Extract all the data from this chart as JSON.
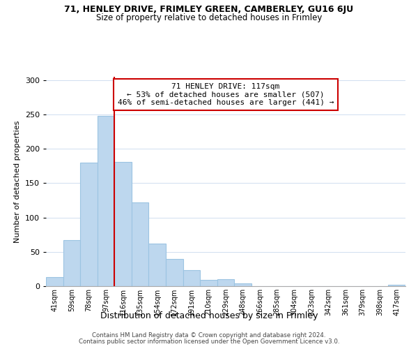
{
  "title1": "71, HENLEY DRIVE, FRIMLEY GREEN, CAMBERLEY, GU16 6JU",
  "title2": "Size of property relative to detached houses in Frimley",
  "xlabel": "Distribution of detached houses by size in Frimley",
  "ylabel": "Number of detached properties",
  "bar_labels": [
    "41sqm",
    "59sqm",
    "78sqm",
    "97sqm",
    "116sqm",
    "135sqm",
    "154sqm",
    "172sqm",
    "191sqm",
    "210sqm",
    "229sqm",
    "248sqm",
    "266sqm",
    "285sqm",
    "304sqm",
    "323sqm",
    "342sqm",
    "361sqm",
    "379sqm",
    "398sqm",
    "417sqm"
  ],
  "bar_values": [
    13,
    67,
    180,
    248,
    181,
    122,
    62,
    40,
    23,
    9,
    10,
    4,
    0,
    0,
    0,
    0,
    0,
    0,
    0,
    0,
    2
  ],
  "bar_color": "#bdd7ee",
  "bar_edge_color": "#9bc4e2",
  "vline_color": "#cc0000",
  "annotation_line1": "71 HENLEY DRIVE: 117sqm",
  "annotation_line2": "← 53% of detached houses are smaller (507)",
  "annotation_line3": "46% of semi-detached houses are larger (441) →",
  "annotation_box_color": "#ffffff",
  "annotation_box_edge": "#cc0000",
  "ylim": [
    0,
    305
  ],
  "yticks": [
    0,
    50,
    100,
    150,
    200,
    250,
    300
  ],
  "footer1": "Contains HM Land Registry data © Crown copyright and database right 2024.",
  "footer2": "Contains public sector information licensed under the Open Government Licence v3.0.",
  "bg_color": "#ffffff",
  "grid_color": "#d0dff0"
}
